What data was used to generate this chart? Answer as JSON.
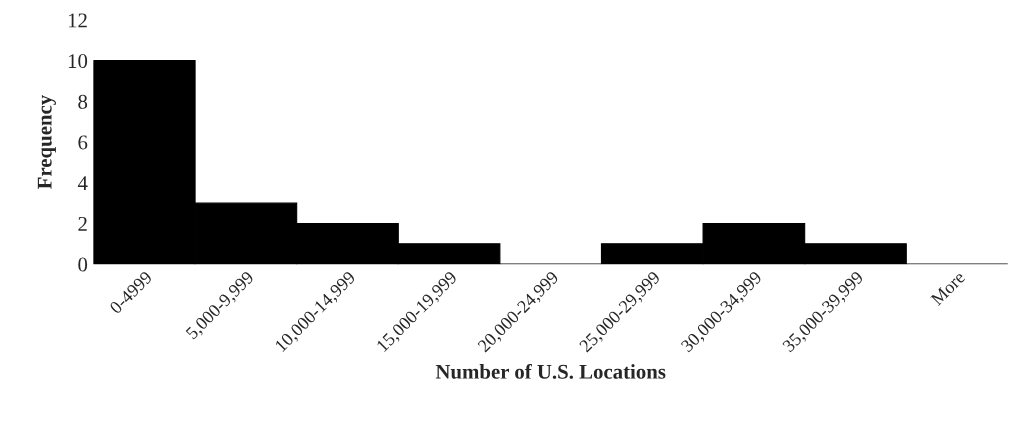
{
  "chart_data": {
    "type": "bar",
    "xlabel": "Number of U.S. Locations",
    "ylabel": "Frequency",
    "categories": [
      "0-4999",
      "5,000-9,999",
      "10,000-14,999",
      "15,000-19,999",
      "20,000-24,999",
      "25,000-29,999",
      "30,000-34,999",
      "35,000-39,999",
      "More"
    ],
    "values": [
      10,
      3,
      2,
      1,
      0,
      1,
      2,
      1,
      0
    ],
    "color": "#000000",
    "ylim": [
      0,
      12
    ],
    "yticks": [
      0,
      2,
      4,
      6,
      8,
      10,
      12
    ],
    "grid": false,
    "legend": false
  }
}
